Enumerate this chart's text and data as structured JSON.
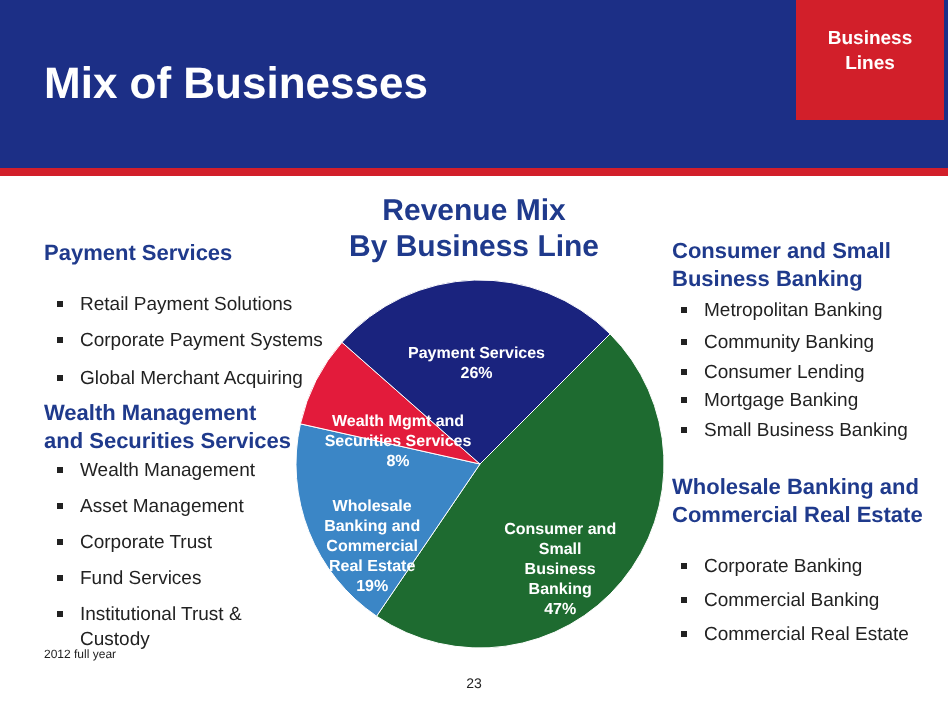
{
  "chart_data": {
    "type": "pie",
    "title": "Mix of Businesses",
    "subtitle": "Revenue Mix\nBy Business Line",
    "categories": [
      "Consumer and Small Business Banking",
      "Wholesale Banking and Commercial Real Estate",
      "Wealth Mgmt and Securities Services",
      "Payment Services"
    ],
    "values": [
      47,
      19,
      8,
      26
    ],
    "value_labels": [
      "47%",
      "19%",
      "8%",
      "26%"
    ],
    "colors": [
      "#1e6b30",
      "#3b86c6",
      "#e31b3b",
      "#1a237e"
    ],
    "annotations": [
      "Business\nLines",
      "Payment Services",
      "Retail Payment Solutions",
      "Corporate Payment Systems",
      "Global Merchant Acquiring",
      "Wealth Management\nand Securities Services",
      "Wealth Management",
      "Asset Management",
      "Corporate Trust",
      "Fund Services",
      "Institutional Trust &\nCustody",
      "Consumer and Small\nBusiness Banking",
      "Metropolitan Banking",
      "Community Banking",
      "Consumer Lending",
      "Mortgage Banking",
      "Small Business Banking",
      "Wholesale Banking and\nCommercial Real Estate",
      "Corporate Banking",
      "Commercial Banking",
      "Commercial Real Estate",
      "2012 full year",
      "23"
    ]
  }
}
